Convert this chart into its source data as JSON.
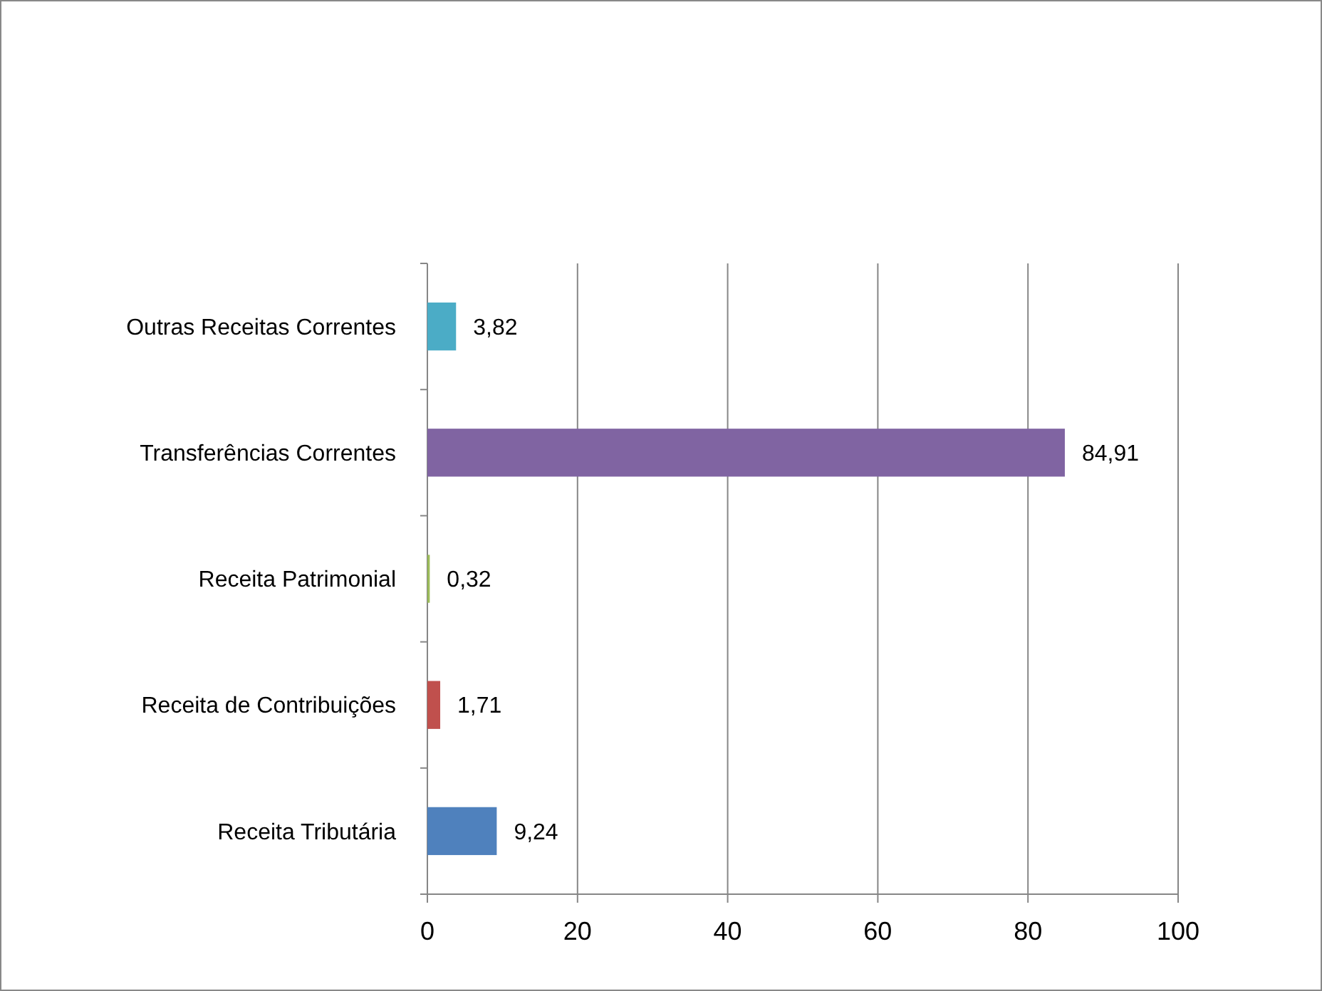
{
  "chart_data": {
    "type": "bar",
    "orientation": "horizontal",
    "categories": [
      "Outras Receitas Correntes",
      "Transferências Correntes",
      "Receita Patrimonial",
      "Receita de Contribuições",
      "Receita Tributária"
    ],
    "values": [
      3.82,
      84.91,
      0.32,
      1.71,
      9.24
    ],
    "colors": [
      "#4bacc6",
      "#8064a2",
      "#9bbb59",
      "#c0504d",
      "#4f81bd"
    ],
    "value_labels": [
      "3,82",
      "84,91",
      "0,32",
      "1,71",
      "9,24"
    ],
    "xlim": [
      0,
      100
    ],
    "xticks": [
      0,
      20,
      40,
      60,
      80,
      100
    ],
    "grid": "x"
  }
}
